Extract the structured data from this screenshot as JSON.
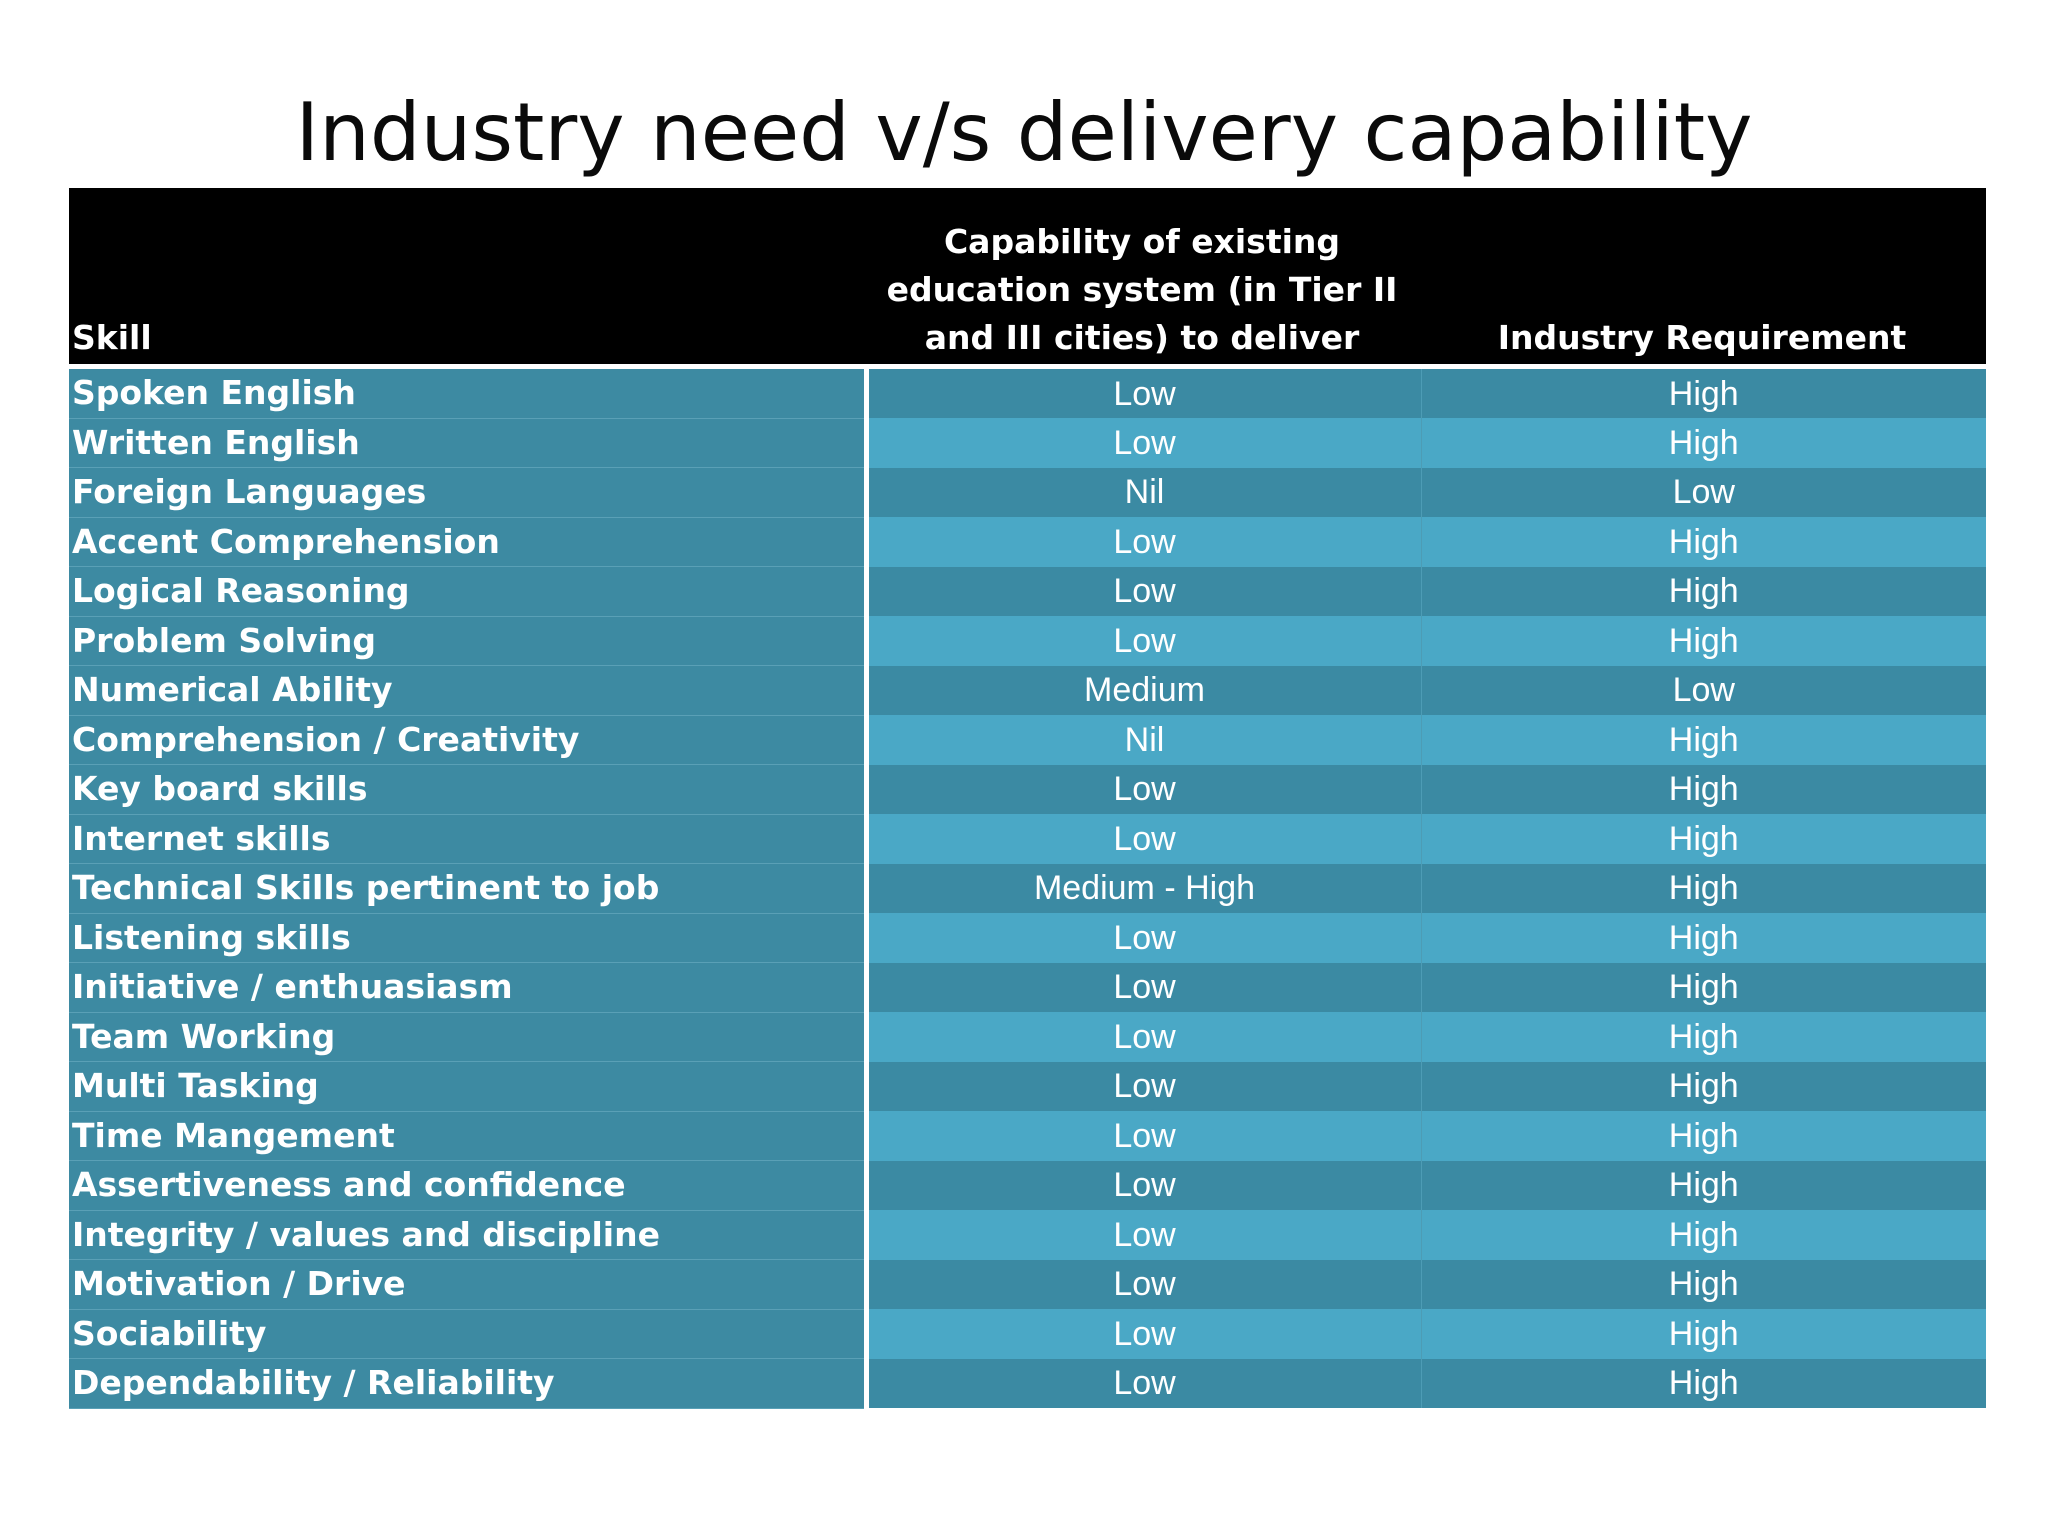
{
  "title": "Industry need v/s delivery capability",
  "table": {
    "headers": {
      "skill": "Skill",
      "capability": "Capability of existing education system (in Tier II and III cities) to deliver",
      "requirement": "Industry Requirement"
    },
    "rows": [
      {
        "skill": "Spoken English",
        "capability": "Low",
        "requirement": "High"
      },
      {
        "skill": "Written English",
        "capability": "Low",
        "requirement": "High"
      },
      {
        "skill": "Foreign Languages",
        "capability": "Nil",
        "requirement": "Low"
      },
      {
        "skill": "Accent Comprehension",
        "capability": "Low",
        "requirement": "High"
      },
      {
        "skill": "Logical Reasoning",
        "capability": "Low",
        "requirement": "High"
      },
      {
        "skill": "Problem Solving",
        "capability": "Low",
        "requirement": "High"
      },
      {
        "skill": "Numerical Ability",
        "capability": "Medium",
        "requirement": "Low"
      },
      {
        "skill": "Comprehension / Creativity",
        "capability": "Nil",
        "requirement": "High"
      },
      {
        "skill": "Key board skills",
        "capability": "Low",
        "requirement": "High"
      },
      {
        "skill": "Internet skills",
        "capability": "Low",
        "requirement": "High"
      },
      {
        "skill": "Technical Skills pertinent to job",
        "capability": "Medium - High",
        "requirement": "High"
      },
      {
        "skill": "Listening skills",
        "capability": "Low",
        "requirement": "High"
      },
      {
        "skill": "Initiative / enthuasiasm",
        "capability": "Low",
        "requirement": "High"
      },
      {
        "skill": "Team Working",
        "capability": "Low",
        "requirement": "High"
      },
      {
        "skill": "Multi Tasking",
        "capability": "Low",
        "requirement": "High"
      },
      {
        "skill": "Time Mangement",
        "capability": "Low",
        "requirement": "High"
      },
      {
        "skill": "Assertiveness and confidence",
        "capability": "Low",
        "requirement": "High"
      },
      {
        "skill": "Integrity / values and discipline",
        "capability": "Low",
        "requirement": "High"
      },
      {
        "skill": "Motivation / Drive",
        "capability": "Low",
        "requirement": "High"
      },
      {
        "skill": "Sociability",
        "capability": "Low",
        "requirement": "High"
      },
      {
        "skill": "Dependability / Reliability",
        "capability": "Low",
        "requirement": "High"
      }
    ]
  },
  "colors": {
    "header_bg": "#000000",
    "row_dark": "#3b8aa3",
    "row_light": "#4aa8c6",
    "text": "#ffffff"
  }
}
